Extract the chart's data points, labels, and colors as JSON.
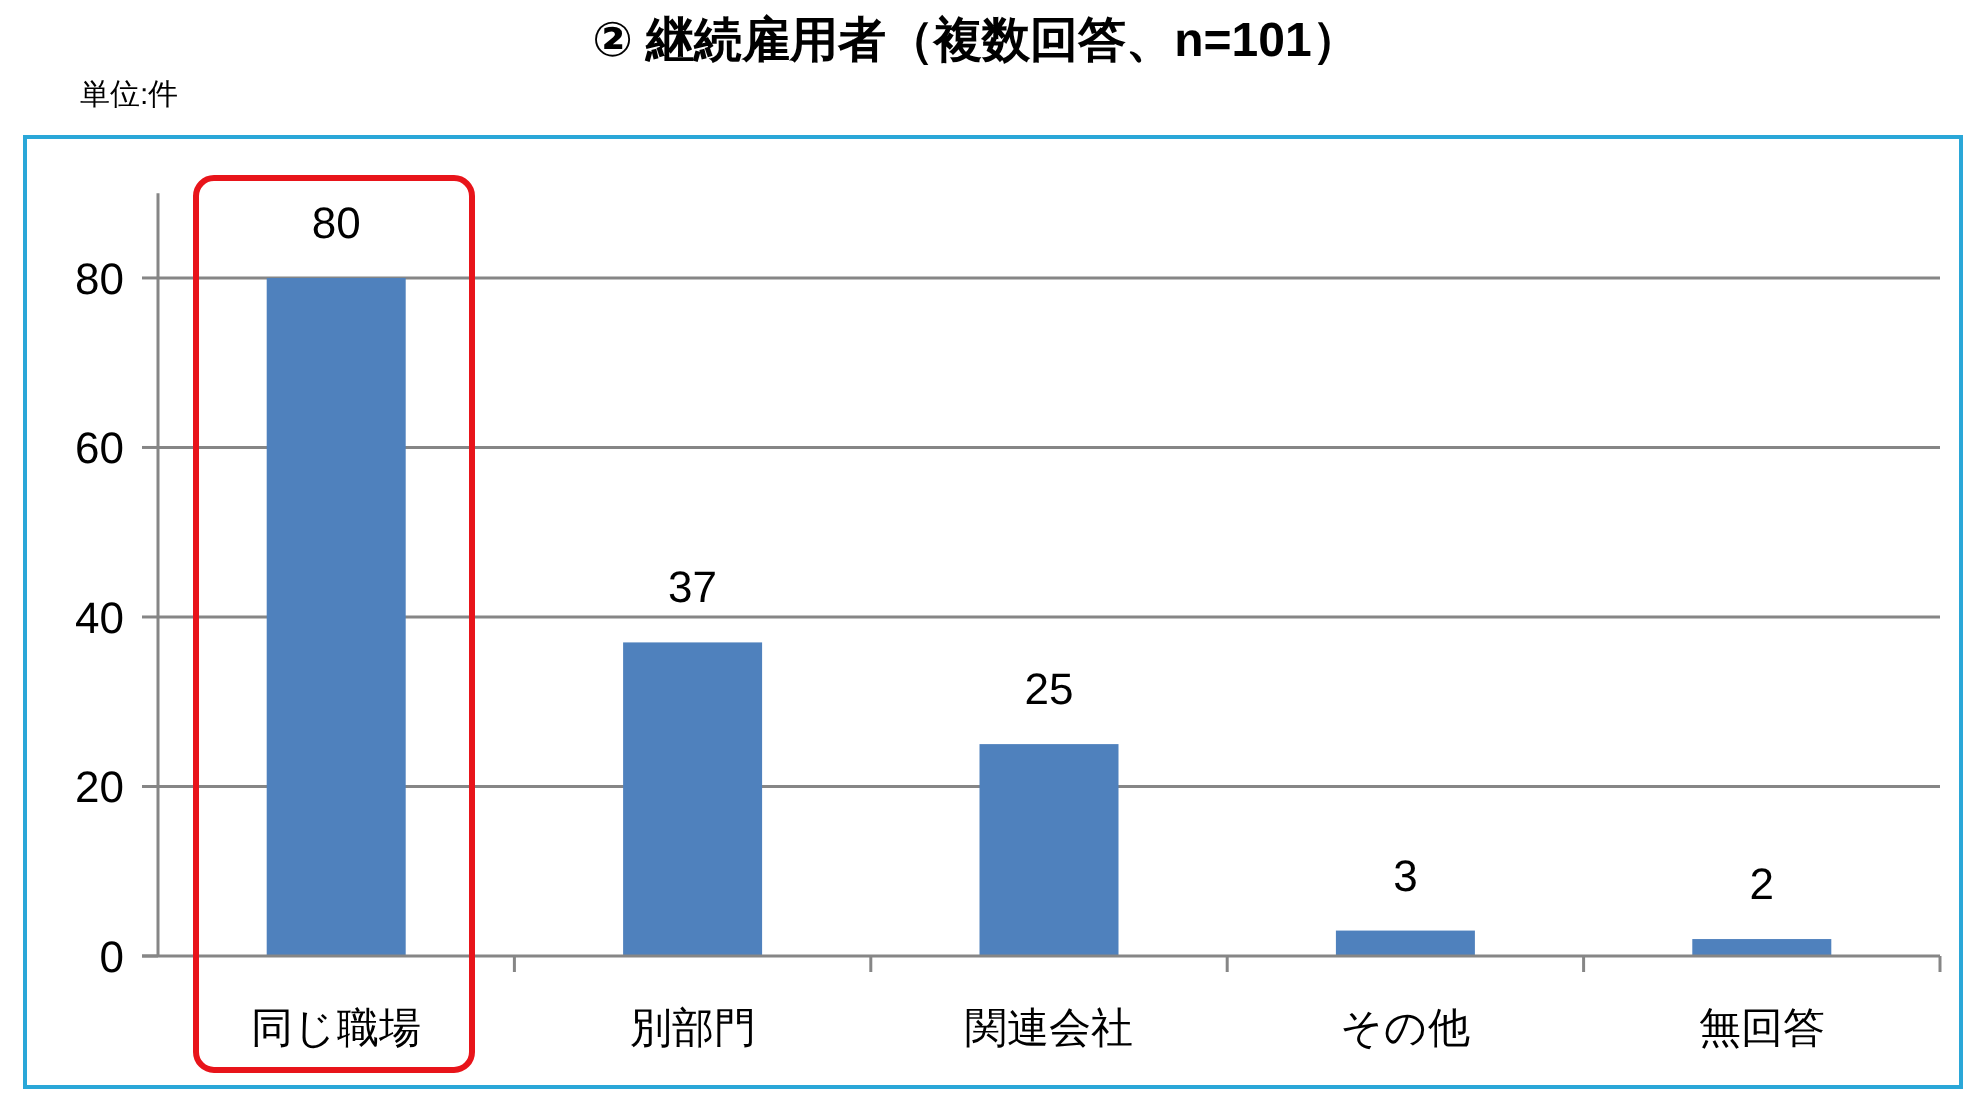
{
  "chart_data": {
    "type": "bar",
    "title": "② 継続雇用者（複数回答、n=101）",
    "ylabel": "単位:件",
    "categories": [
      "同じ職場",
      "別部門",
      "関連会社",
      "その他",
      "無回答"
    ],
    "values": [
      80,
      37,
      25,
      3,
      2
    ],
    "color": "#4f81bd",
    "ylim": [
      0,
      90
    ],
    "yticks": [
      0,
      20,
      40,
      60,
      80
    ],
    "grid": "y",
    "data_labels": true
  }
}
